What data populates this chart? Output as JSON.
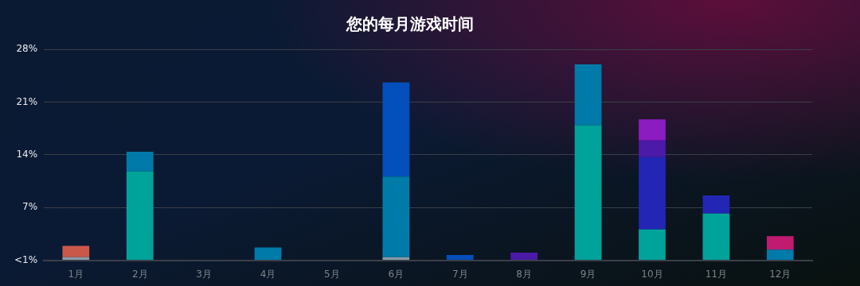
{
  "chart_data": {
    "type": "bar",
    "title": "您的每月游戏时间",
    "stacked": true,
    "grid": "y",
    "categories": [
      "1月",
      "2月",
      "3月",
      "4月",
      "5月",
      "6月",
      "7月",
      "8月",
      "9月",
      "10月",
      "11月",
      "12月"
    ],
    "ylim": [
      0,
      28
    ],
    "yticks": [
      {
        "value": 0,
        "label": "<1%"
      },
      {
        "value": 7,
        "label": "7%"
      },
      {
        "value": 14,
        "label": "14%"
      },
      {
        "value": 21,
        "label": "21%"
      },
      {
        "value": 28,
        "label": "28%"
      }
    ],
    "series": [
      {
        "color": "#8a9aa8",
        "values": [
          0.4,
          null,
          null,
          null,
          null,
          0.4,
          null,
          null,
          null,
          null,
          null,
          null
        ]
      },
      {
        "color": "#c9584a",
        "values": [
          1.5,
          null,
          null,
          null,
          null,
          null,
          null,
          null,
          null,
          null,
          null,
          null
        ]
      },
      {
        "color": "#00a39a",
        "values": [
          null,
          11.8,
          null,
          null,
          null,
          null,
          null,
          null,
          17.9,
          4.1,
          6.2,
          null
        ]
      },
      {
        "color": "#007aa8",
        "values": [
          null,
          2.6,
          null,
          1.7,
          null,
          10.7,
          null,
          null,
          8.1,
          null,
          null,
          1.4
        ]
      },
      {
        "color": "#034fbb",
        "values": [
          null,
          null,
          null,
          null,
          null,
          12.5,
          0.7,
          null,
          null,
          null,
          null,
          null
        ]
      },
      {
        "color": "#2326b5",
        "values": [
          null,
          null,
          null,
          null,
          null,
          null,
          null,
          null,
          null,
          9.6,
          2.4,
          null
        ]
      },
      {
        "color": "#4b1aa6",
        "values": [
          null,
          null,
          null,
          null,
          null,
          null,
          null,
          1.0,
          null,
          2.2,
          null,
          null
        ]
      },
      {
        "color": "#8b1cc0",
        "values": [
          null,
          null,
          null,
          null,
          null,
          null,
          null,
          null,
          null,
          2.8,
          null,
          null
        ]
      },
      {
        "color": "#c01b70",
        "values": [
          null,
          null,
          null,
          null,
          null,
          null,
          null,
          null,
          null,
          null,
          null,
          1.8
        ]
      }
    ]
  }
}
